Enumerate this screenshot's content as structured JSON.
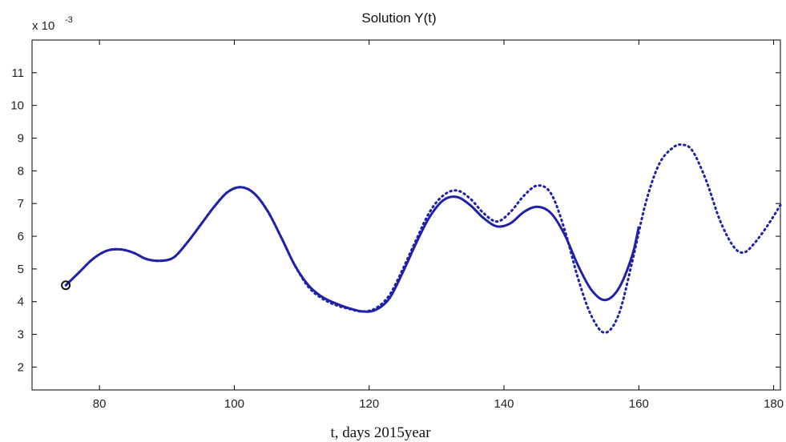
{
  "chart_data": {
    "type": "line",
    "title": "Solution  Y(t)",
    "xlabel": "t, days  2015year",
    "ylabel": "",
    "y_scale_prefix": "x 10",
    "y_scale_exponent": "-3",
    "xlim": [
      70,
      181
    ],
    "ylim": [
      1.3,
      12
    ],
    "x_ticks": [
      80,
      100,
      120,
      140,
      160,
      180
    ],
    "y_ticks": [
      2,
      3,
      4,
      5,
      6,
      7,
      8,
      9,
      10,
      11
    ],
    "grid": false,
    "colors": {
      "line": "#1f22a8",
      "marker": "#111111",
      "axis": "#000000"
    },
    "start_marker": {
      "x": 75,
      "y": 4.5
    },
    "series": [
      {
        "style": "solid",
        "x": [
          75,
          77,
          79,
          81,
          83,
          85,
          87,
          89,
          91,
          93,
          95,
          97,
          99,
          101,
          103,
          105,
          107,
          109,
          111,
          113,
          115,
          117,
          119,
          121,
          123,
          125,
          127,
          129,
          131,
          133,
          135,
          137,
          139,
          141,
          143,
          145,
          147,
          149,
          151,
          153,
          155,
          157,
          159,
          160
        ],
        "values": [
          4.5,
          4.9,
          5.3,
          5.55,
          5.6,
          5.5,
          5.3,
          5.25,
          5.35,
          5.8,
          6.35,
          6.9,
          7.35,
          7.5,
          7.3,
          6.75,
          5.95,
          5.1,
          4.5,
          4.15,
          3.95,
          3.8,
          3.7,
          3.75,
          4.1,
          4.9,
          5.8,
          6.6,
          7.1,
          7.2,
          6.95,
          6.55,
          6.3,
          6.4,
          6.75,
          6.9,
          6.7,
          6.05,
          5.1,
          4.35,
          4.05,
          4.4,
          5.4,
          6.3
        ]
      },
      {
        "style": "dotted",
        "x": [
          75,
          77,
          79,
          81,
          83,
          85,
          87,
          89,
          91,
          93,
          95,
          97,
          99,
          101,
          103,
          105,
          107,
          109,
          111,
          113,
          115,
          117,
          119,
          121,
          123,
          125,
          127,
          129,
          131,
          133,
          135,
          137,
          139,
          141,
          143,
          145,
          147,
          149,
          151,
          153,
          155,
          157,
          159,
          161,
          163,
          165,
          166.5,
          168,
          170,
          172,
          174,
          175.5,
          177,
          179,
          181
        ],
        "values": [
          4.5,
          4.9,
          5.3,
          5.55,
          5.6,
          5.5,
          5.3,
          5.25,
          5.35,
          5.8,
          6.35,
          6.9,
          7.35,
          7.5,
          7.3,
          6.75,
          5.95,
          5.1,
          4.45,
          4.1,
          3.9,
          3.78,
          3.7,
          3.8,
          4.2,
          5.0,
          5.9,
          6.75,
          7.25,
          7.4,
          7.15,
          6.7,
          6.45,
          6.75,
          7.25,
          7.55,
          7.3,
          6.2,
          4.7,
          3.55,
          3.05,
          3.6,
          5.2,
          7.0,
          8.2,
          8.7,
          8.8,
          8.6,
          7.7,
          6.5,
          5.7,
          5.5,
          5.75,
          6.3,
          6.95
        ]
      }
    ]
  }
}
